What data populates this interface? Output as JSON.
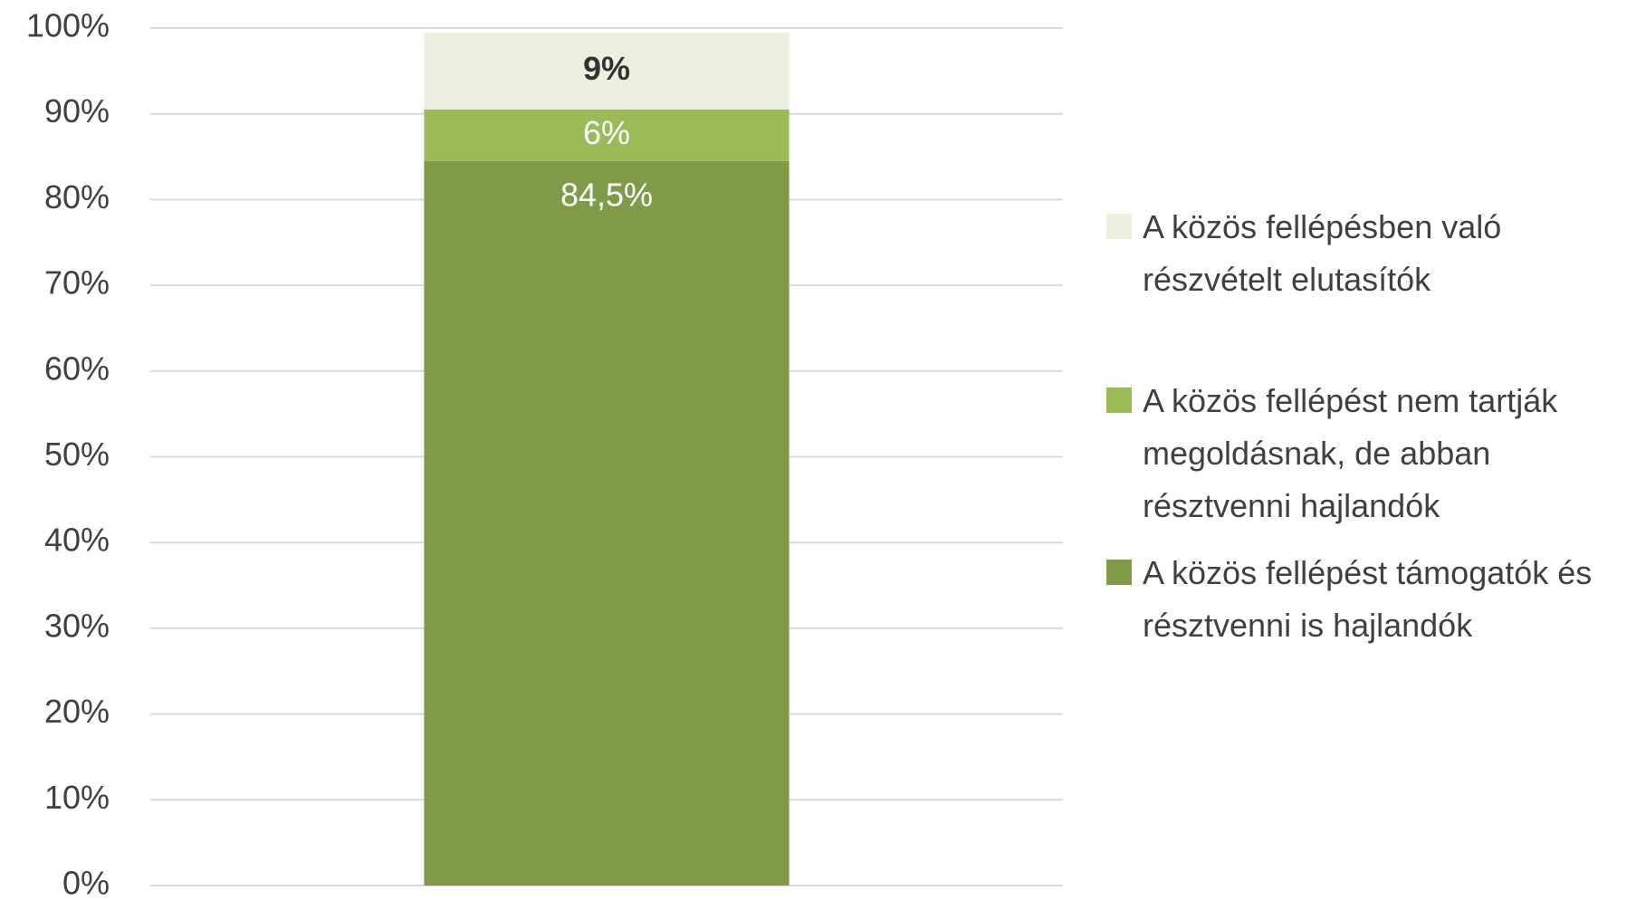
{
  "chart_data": {
    "type": "stacked_bar",
    "categories": [
      null
    ],
    "series": [
      {
        "name": "A közös fellépést támogatók és  résztvenni is hajlandók",
        "color": "#7f9b48",
        "values": [
          84.5
        ],
        "value_labels": [
          "84,5%"
        ],
        "label_color": "#ffffff"
      },
      {
        "name": "A közös fellépést nem tartják megoldásnak, de abban résztvenni hajlandók",
        "color": "#9bbb59",
        "values": [
          6
        ],
        "value_labels": [
          "6%"
        ],
        "label_color": "#ffffff"
      },
      {
        "name": "A közös fellépésben való részvételt elutasítók",
        "color": "#ebf1de",
        "values": [
          9
        ],
        "value_labels": [
          "9%"
        ],
        "label_color": "#333333"
      }
    ],
    "ylim": [
      0,
      100
    ],
    "yticks": [
      {
        "value": 0,
        "label": "0%"
      },
      {
        "value": 10,
        "label": "10%"
      },
      {
        "value": 20,
        "label": "20%"
      },
      {
        "value": 30,
        "label": "30%"
      },
      {
        "value": 40,
        "label": "40%"
      },
      {
        "value": 50,
        "label": "50%"
      },
      {
        "value": 60,
        "label": "60%"
      },
      {
        "value": 70,
        "label": "70%"
      },
      {
        "value": 80,
        "label": "80%"
      },
      {
        "value": 90,
        "label": "90%"
      },
      {
        "value": 100,
        "label": "100%"
      }
    ],
    "grid": true,
    "legend": "right"
  }
}
